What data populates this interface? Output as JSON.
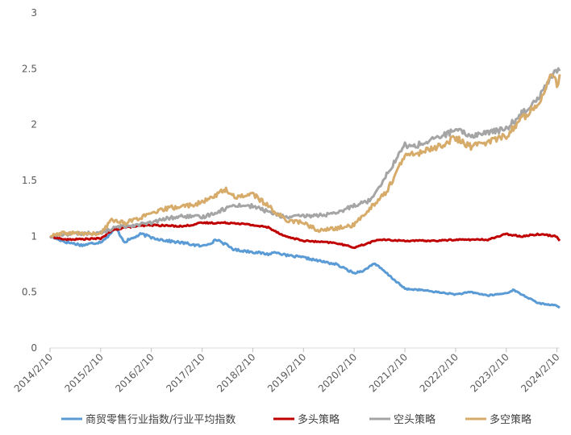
{
  "chart_data": {
    "type": "line",
    "title": "",
    "xlabel": "",
    "ylabel": "",
    "ylim": [
      0,
      3
    ],
    "y_ticks": [
      "0",
      "0.5",
      "1",
      "1.5",
      "2",
      "2.5",
      "3"
    ],
    "x_range": [
      "2014-02-10",
      "2024-03-01"
    ],
    "x_tick_labels": [
      "2014/2/10",
      "2015/2/10",
      "2016/2/10",
      "2017/2/10",
      "2018/2/10",
      "2019/2/10",
      "2020/2/10",
      "2021/2/10",
      "2022/2/10",
      "2023/2/10",
      "2024/2/10"
    ],
    "grid": false,
    "legend_position": "bottom",
    "series": [
      {
        "name": "商贸零售行业指数/行业平均指数",
        "color": "#5b9bd5",
        "points": [
          [
            "2014-02-10",
            1.0
          ],
          [
            "2014-06-01",
            0.95
          ],
          [
            "2014-10-01",
            0.92
          ],
          [
            "2015-02-10",
            0.95
          ],
          [
            "2015-04-01",
            1.0
          ],
          [
            "2015-06-01",
            1.07
          ],
          [
            "2015-08-01",
            0.95
          ],
          [
            "2015-12-01",
            1.02
          ],
          [
            "2016-02-10",
            0.99
          ],
          [
            "2016-06-01",
            0.96
          ],
          [
            "2016-10-01",
            0.94
          ],
          [
            "2017-02-10",
            0.91
          ],
          [
            "2017-06-01",
            0.97
          ],
          [
            "2017-10-01",
            0.88
          ],
          [
            "2018-02-10",
            0.86
          ],
          [
            "2018-06-01",
            0.84
          ],
          [
            "2018-08-01",
            0.86
          ],
          [
            "2018-10-01",
            0.83
          ],
          [
            "2019-02-10",
            0.81
          ],
          [
            "2019-06-01",
            0.78
          ],
          [
            "2019-10-01",
            0.75
          ],
          [
            "2020-02-10",
            0.67
          ],
          [
            "2020-05-01",
            0.7
          ],
          [
            "2020-07-01",
            0.76
          ],
          [
            "2020-09-01",
            0.7
          ],
          [
            "2021-02-10",
            0.53
          ],
          [
            "2021-06-01",
            0.52
          ],
          [
            "2021-10-01",
            0.5
          ],
          [
            "2022-02-10",
            0.48
          ],
          [
            "2022-06-01",
            0.5
          ],
          [
            "2022-10-01",
            0.47
          ],
          [
            "2023-02-10",
            0.49
          ],
          [
            "2023-04-01",
            0.52
          ],
          [
            "2023-08-01",
            0.44
          ],
          [
            "2023-10-01",
            0.4
          ],
          [
            "2024-02-10",
            0.38
          ],
          [
            "2024-03-01",
            0.36
          ]
        ]
      },
      {
        "name": "多头策略",
        "color": "#c00000",
        "points": [
          [
            "2014-02-10",
            1.0
          ],
          [
            "2014-06-01",
            0.97
          ],
          [
            "2015-02-10",
            0.98
          ],
          [
            "2015-05-01",
            1.05
          ],
          [
            "2015-08-01",
            1.08
          ],
          [
            "2016-02-10",
            1.1
          ],
          [
            "2016-10-01",
            1.09
          ],
          [
            "2017-02-10",
            1.12
          ],
          [
            "2017-10-01",
            1.12
          ],
          [
            "2018-02-10",
            1.1
          ],
          [
            "2018-06-01",
            1.08
          ],
          [
            "2018-10-01",
            1.0
          ],
          [
            "2019-02-10",
            0.96
          ],
          [
            "2019-10-01",
            0.94
          ],
          [
            "2020-02-10",
            0.9
          ],
          [
            "2020-05-01",
            0.93
          ],
          [
            "2020-08-01",
            0.97
          ],
          [
            "2021-02-10",
            0.96
          ],
          [
            "2021-10-01",
            0.96
          ],
          [
            "2022-02-10",
            0.97
          ],
          [
            "2022-10-01",
            0.97
          ],
          [
            "2023-02-10",
            1.02
          ],
          [
            "2023-06-01",
            1.0
          ],
          [
            "2023-10-01",
            1.02
          ],
          [
            "2024-02-10",
            1.0
          ],
          [
            "2024-03-01",
            0.96
          ]
        ]
      },
      {
        "name": "空头策略",
        "color": "#a5a5a5",
        "points": [
          [
            "2014-02-10",
            1.0
          ],
          [
            "2014-06-01",
            1.02
          ],
          [
            "2015-02-10",
            1.03
          ],
          [
            "2015-06-01",
            1.08
          ],
          [
            "2015-10-01",
            1.1
          ],
          [
            "2016-02-10",
            1.12
          ],
          [
            "2016-06-01",
            1.16
          ],
          [
            "2016-10-01",
            1.18
          ],
          [
            "2017-02-10",
            1.17
          ],
          [
            "2017-06-01",
            1.22
          ],
          [
            "2017-10-01",
            1.28
          ],
          [
            "2018-02-10",
            1.27
          ],
          [
            "2018-06-01",
            1.22
          ],
          [
            "2018-10-01",
            1.17
          ],
          [
            "2019-02-10",
            1.18
          ],
          [
            "2019-10-01",
            1.2
          ],
          [
            "2020-02-10",
            1.28
          ],
          [
            "2020-06-01",
            1.32
          ],
          [
            "2020-10-01",
            1.55
          ],
          [
            "2021-02-10",
            1.82
          ],
          [
            "2021-04-01",
            1.8
          ],
          [
            "2021-08-01",
            1.85
          ],
          [
            "2022-02-10",
            1.95
          ],
          [
            "2022-06-01",
            1.9
          ],
          [
            "2022-10-01",
            1.93
          ],
          [
            "2023-02-10",
            1.96
          ],
          [
            "2023-06-01",
            2.1
          ],
          [
            "2023-10-01",
            2.25
          ],
          [
            "2024-02-10",
            2.5
          ],
          [
            "2024-03-01",
            2.48
          ]
        ]
      },
      {
        "name": "多空策略",
        "color": "#d7ab6a",
        "points": [
          [
            "2014-02-10",
            1.0
          ],
          [
            "2014-06-01",
            1.03
          ],
          [
            "2015-02-10",
            1.02
          ],
          [
            "2015-05-01",
            1.15
          ],
          [
            "2015-08-01",
            1.12
          ],
          [
            "2016-02-10",
            1.2
          ],
          [
            "2016-06-01",
            1.25
          ],
          [
            "2016-10-01",
            1.27
          ],
          [
            "2017-02-10",
            1.3
          ],
          [
            "2017-06-01",
            1.38
          ],
          [
            "2017-08-01",
            1.42
          ],
          [
            "2017-10-01",
            1.35
          ],
          [
            "2018-02-10",
            1.38
          ],
          [
            "2018-06-01",
            1.27
          ],
          [
            "2018-10-01",
            1.15
          ],
          [
            "2019-02-10",
            1.12
          ],
          [
            "2019-06-01",
            1.05
          ],
          [
            "2019-10-01",
            1.07
          ],
          [
            "2020-02-10",
            1.1
          ],
          [
            "2020-06-01",
            1.25
          ],
          [
            "2020-10-01",
            1.4
          ],
          [
            "2021-02-10",
            1.72
          ],
          [
            "2021-06-01",
            1.75
          ],
          [
            "2021-10-01",
            1.8
          ],
          [
            "2022-02-10",
            1.88
          ],
          [
            "2022-06-01",
            1.8
          ],
          [
            "2022-10-01",
            1.85
          ],
          [
            "2023-02-10",
            1.9
          ],
          [
            "2023-06-01",
            2.05
          ],
          [
            "2023-10-01",
            2.2
          ],
          [
            "2024-01-01",
            2.45
          ],
          [
            "2024-02-10",
            2.35
          ],
          [
            "2024-03-01",
            2.45
          ]
        ]
      }
    ]
  }
}
